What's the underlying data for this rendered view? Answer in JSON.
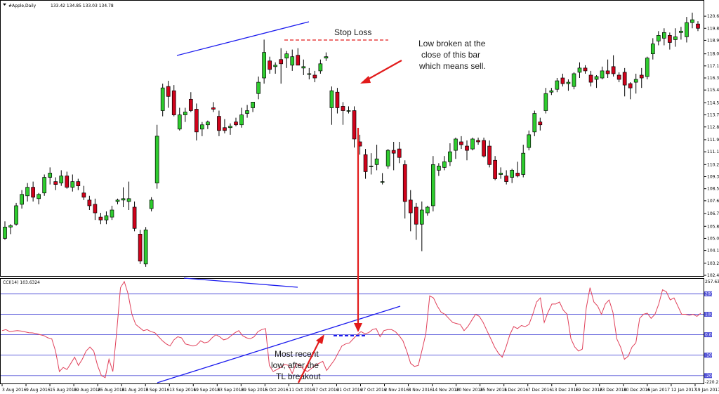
{
  "header": {
    "symbol_title": "#Apple,Daily",
    "ohlc_text": "133.42 134.85 133.03 134.78",
    "indicator_title": "CCI(14) 103.6324"
  },
  "annotations": {
    "stop_loss": "Stop Loss",
    "sell_note": [
      "Low broken at the",
      "close of this bar",
      "which means sell."
    ],
    "recent_low_note": [
      "Most recent",
      "low, after the",
      "TL breakout"
    ]
  },
  "colors": {
    "bull": "#2ecc2e",
    "bear": "#d0021b",
    "cci_line": "#e0405a",
    "trendline": "#1a1aee",
    "level_line": "#5050d8",
    "arrow": "#e21b1b",
    "stop_line": "#e21b1b"
  },
  "chart_data": [
    {
      "type": "candlestick",
      "title": "#Apple,Daily",
      "ylim": [
        102.4,
        121.0
      ],
      "y_tick_labels": [
        "120.65",
        "119.80",
        "118.95",
        "118.00",
        "117.15",
        "116.30",
        "115.45",
        "114.55",
        "113.70",
        "112.85",
        "111.95",
        "111.10",
        "110.20",
        "109.35",
        "108.50",
        "107.65",
        "106.75",
        "105.85",
        "105.00",
        "104.15",
        "103.25",
        "102.40"
      ],
      "x_tick_labels": [
        "3 Aug 2016",
        "9 Aug 2016",
        "15 Aug 2016",
        "19 Aug 2016",
        "25 Aug 2016",
        "31 Aug 2016",
        "7 Sep 2016",
        "13 Sep 2016",
        "19 Sep 2016",
        "23 Sep 2016",
        "29 Sep 2016",
        "5 Oct 2016",
        "11 Oct 2016",
        "17 Oct 2016",
        "21 Oct 2016",
        "27 Oct 2016",
        "2 Nov 2016",
        "8 Nov 2016",
        "14 Nov 2016",
        "20 Nov 2016",
        "25 Nov 2016",
        "1 Dec 2016",
        "7 Dec 2016",
        "13 Dec 2016",
        "19 Dec 2016",
        "23 Dec 2016",
        "30 Dec 2016",
        "6 Jan 2017",
        "12 Jan 2017",
        "19 Jan 2017"
      ],
      "candles": [
        {
          "o": 105.0,
          "h": 106.2,
          "l": 104.9,
          "c": 105.8
        },
        {
          "o": 105.8,
          "h": 106.0,
          "l": 105.3,
          "c": 105.9
        },
        {
          "o": 106.0,
          "h": 107.5,
          "l": 105.9,
          "c": 107.3
        },
        {
          "o": 107.4,
          "h": 108.4,
          "l": 107.1,
          "c": 108.1
        },
        {
          "o": 108.0,
          "h": 108.9,
          "l": 107.6,
          "c": 108.6
        },
        {
          "o": 108.6,
          "h": 109.0,
          "l": 107.6,
          "c": 107.9
        },
        {
          "o": 107.8,
          "h": 108.2,
          "l": 107.4,
          "c": 108.1
        },
        {
          "o": 108.2,
          "h": 109.5,
          "l": 108.0,
          "c": 109.3
        },
        {
          "o": 109.3,
          "h": 110.0,
          "l": 108.8,
          "c": 109.6
        },
        {
          "o": 109.0,
          "h": 109.3,
          "l": 108.4,
          "c": 108.8
        },
        {
          "o": 108.9,
          "h": 109.8,
          "l": 108.7,
          "c": 109.4
        },
        {
          "o": 109.4,
          "h": 109.7,
          "l": 108.5,
          "c": 108.6
        },
        {
          "o": 108.6,
          "h": 109.5,
          "l": 108.3,
          "c": 109.0
        },
        {
          "o": 109.0,
          "h": 109.2,
          "l": 108.4,
          "c": 108.7
        },
        {
          "o": 108.2,
          "h": 108.7,
          "l": 107.7,
          "c": 107.9
        },
        {
          "o": 107.7,
          "h": 108.0,
          "l": 107.0,
          "c": 107.3
        },
        {
          "o": 107.4,
          "h": 107.8,
          "l": 106.3,
          "c": 106.8
        },
        {
          "o": 106.5,
          "h": 106.8,
          "l": 106.0,
          "c": 106.3
        },
        {
          "o": 106.3,
          "h": 106.9,
          "l": 106.0,
          "c": 106.6
        },
        {
          "o": 106.5,
          "h": 107.3,
          "l": 106.3,
          "c": 107.0
        },
        {
          "o": 107.6,
          "h": 107.8,
          "l": 107.4,
          "c": 107.7
        },
        {
          "o": 107.7,
          "h": 108.6,
          "l": 107.2,
          "c": 107.8
        },
        {
          "o": 107.6,
          "h": 109.0,
          "l": 107.0,
          "c": 107.8
        },
        {
          "o": 107.2,
          "h": 107.6,
          "l": 105.5,
          "c": 105.7
        },
        {
          "o": 105.3,
          "h": 105.6,
          "l": 103.2,
          "c": 103.4
        },
        {
          "o": 103.2,
          "h": 105.8,
          "l": 103.0,
          "c": 105.6
        },
        {
          "o": 107.1,
          "h": 107.9,
          "l": 106.9,
          "c": 107.7
        },
        {
          "o": 108.9,
          "h": 113.0,
          "l": 108.5,
          "c": 112.2
        },
        {
          "o": 114.0,
          "h": 115.9,
          "l": 113.6,
          "c": 115.6
        },
        {
          "o": 115.7,
          "h": 116.1,
          "l": 114.2,
          "c": 115.0
        },
        {
          "o": 115.4,
          "h": 115.8,
          "l": 113.6,
          "c": 113.7
        },
        {
          "o": 112.7,
          "h": 114.2,
          "l": 112.6,
          "c": 113.7
        },
        {
          "o": 113.7,
          "h": 114.2,
          "l": 113.2,
          "c": 113.9
        },
        {
          "o": 114.8,
          "h": 115.3,
          "l": 113.9,
          "c": 114.0
        },
        {
          "o": 114.1,
          "h": 114.5,
          "l": 111.9,
          "c": 112.5
        },
        {
          "o": 112.7,
          "h": 113.2,
          "l": 112.2,
          "c": 113.0
        },
        {
          "o": 113.0,
          "h": 113.3,
          "l": 112.7,
          "c": 113.2
        },
        {
          "o": 114.2,
          "h": 114.6,
          "l": 113.9,
          "c": 114.1
        },
        {
          "o": 113.6,
          "h": 114.0,
          "l": 112.2,
          "c": 112.6
        },
        {
          "o": 112.8,
          "h": 113.4,
          "l": 112.4,
          "c": 112.6
        },
        {
          "o": 112.8,
          "h": 113.1,
          "l": 112.3,
          "c": 112.9
        },
        {
          "o": 113.2,
          "h": 113.5,
          "l": 112.9,
          "c": 113.0
        },
        {
          "o": 113.0,
          "h": 114.2,
          "l": 112.8,
          "c": 113.7
        },
        {
          "o": 113.8,
          "h": 114.4,
          "l": 113.5,
          "c": 114.0
        },
        {
          "o": 114.2,
          "h": 114.6,
          "l": 113.9,
          "c": 114.6
        },
        {
          "o": 115.2,
          "h": 116.4,
          "l": 114.8,
          "c": 116.0
        },
        {
          "o": 116.3,
          "h": 119.0,
          "l": 115.9,
          "c": 118.1
        },
        {
          "o": 117.5,
          "h": 117.8,
          "l": 116.6,
          "c": 116.9
        },
        {
          "o": 117.1,
          "h": 117.4,
          "l": 116.6,
          "c": 117.2
        },
        {
          "o": 117.6,
          "h": 118.4,
          "l": 115.9,
          "c": 117.3
        },
        {
          "o": 117.7,
          "h": 118.2,
          "l": 117.0,
          "c": 118.0
        },
        {
          "o": 117.2,
          "h": 118.3,
          "l": 116.8,
          "c": 117.8
        },
        {
          "o": 117.9,
          "h": 118.4,
          "l": 117.3,
          "c": 117.2
        },
        {
          "o": 117.0,
          "h": 117.6,
          "l": 116.5,
          "c": 117.1
        },
        {
          "o": 116.6,
          "h": 117.0,
          "l": 116.2,
          "c": 116.6
        },
        {
          "o": 116.5,
          "h": 116.8,
          "l": 116.0,
          "c": 116.3
        },
        {
          "o": 116.8,
          "h": 117.6,
          "l": 116.6,
          "c": 117.3
        },
        {
          "o": 117.7,
          "h": 118.1,
          "l": 117.5,
          "c": 117.8
        },
        {
          "o": 114.2,
          "h": 115.7,
          "l": 113.0,
          "c": 115.4
        },
        {
          "o": 115.3,
          "h": 115.6,
          "l": 113.8,
          "c": 114.2
        },
        {
          "o": 114.3,
          "h": 114.6,
          "l": 113.0,
          "c": 114.0
        },
        {
          "o": 114.0,
          "h": 114.3,
          "l": 113.8,
          "c": 114.0
        },
        {
          "o": 114.0,
          "h": 114.3,
          "l": 111.4,
          "c": 112.0
        },
        {
          "o": 111.8,
          "h": 112.3,
          "l": 110.9,
          "c": 111.5
        },
        {
          "o": 110.9,
          "h": 111.3,
          "l": 109.2,
          "c": 109.7
        },
        {
          "o": 110.1,
          "h": 111.0,
          "l": 109.5,
          "c": 110.1
        },
        {
          "o": 110.2,
          "h": 111.6,
          "l": 109.8,
          "c": 110.6
        },
        {
          "o": 109.0,
          "h": 109.6,
          "l": 108.8,
          "c": 109.0
        },
        {
          "o": 110.1,
          "h": 111.3,
          "l": 109.9,
          "c": 111.2
        },
        {
          "o": 111.2,
          "h": 111.8,
          "l": 109.8,
          "c": 111.0
        },
        {
          "o": 111.3,
          "h": 111.8,
          "l": 110.3,
          "c": 110.7
        },
        {
          "o": 110.2,
          "h": 110.5,
          "l": 106.4,
          "c": 107.6
        },
        {
          "o": 107.7,
          "h": 108.4,
          "l": 105.5,
          "c": 106.8
        },
        {
          "o": 107.2,
          "h": 107.5,
          "l": 104.9,
          "c": 106.0
        },
        {
          "o": 106.0,
          "h": 107.6,
          "l": 104.1,
          "c": 107.0
        },
        {
          "o": 106.8,
          "h": 107.3,
          "l": 106.6,
          "c": 107.2
        },
        {
          "o": 107.3,
          "h": 110.8,
          "l": 106.9,
          "c": 110.2
        },
        {
          "o": 109.8,
          "h": 110.3,
          "l": 109.4,
          "c": 110.1
        },
        {
          "o": 110.0,
          "h": 110.8,
          "l": 109.8,
          "c": 110.4
        },
        {
          "o": 110.4,
          "h": 111.7,
          "l": 110.1,
          "c": 111.1
        },
        {
          "o": 111.2,
          "h": 112.1,
          "l": 110.6,
          "c": 112.0
        },
        {
          "o": 111.8,
          "h": 112.2,
          "l": 111.3,
          "c": 111.6
        },
        {
          "o": 111.5,
          "h": 111.9,
          "l": 110.5,
          "c": 111.2
        },
        {
          "o": 111.3,
          "h": 112.1,
          "l": 111.2,
          "c": 112.0
        },
        {
          "o": 111.9,
          "h": 112.1,
          "l": 111.6,
          "c": 111.8
        },
        {
          "o": 111.9,
          "h": 112.1,
          "l": 110.7,
          "c": 110.8
        },
        {
          "o": 111.5,
          "h": 111.9,
          "l": 110.0,
          "c": 110.2
        },
        {
          "o": 110.5,
          "h": 110.8,
          "l": 109.1,
          "c": 109.2
        },
        {
          "o": 109.5,
          "h": 110.0,
          "l": 109.2,
          "c": 109.6
        },
        {
          "o": 109.4,
          "h": 109.8,
          "l": 108.8,
          "c": 109.0
        },
        {
          "o": 109.3,
          "h": 109.9,
          "l": 108.9,
          "c": 109.8
        },
        {
          "o": 109.6,
          "h": 110.4,
          "l": 109.3,
          "c": 109.4
        },
        {
          "o": 109.5,
          "h": 111.6,
          "l": 109.3,
          "c": 111.0
        },
        {
          "o": 111.4,
          "h": 112.6,
          "l": 111.2,
          "c": 112.3
        },
        {
          "o": 112.5,
          "h": 114.0,
          "l": 112.2,
          "c": 113.8
        },
        {
          "o": 113.2,
          "h": 113.5,
          "l": 112.6,
          "c": 113.0
        },
        {
          "o": 114.0,
          "h": 115.6,
          "l": 113.8,
          "c": 115.2
        },
        {
          "o": 115.3,
          "h": 115.6,
          "l": 115.1,
          "c": 115.4
        },
        {
          "o": 115.5,
          "h": 116.3,
          "l": 115.3,
          "c": 116.1
        },
        {
          "o": 116.3,
          "h": 116.6,
          "l": 115.7,
          "c": 115.9
        },
        {
          "o": 115.9,
          "h": 116.2,
          "l": 115.4,
          "c": 116.0
        },
        {
          "o": 115.7,
          "h": 116.7,
          "l": 115.5,
          "c": 116.6
        },
        {
          "o": 116.7,
          "h": 117.4,
          "l": 116.3,
          "c": 117.0
        },
        {
          "o": 117.0,
          "h": 117.2,
          "l": 116.6,
          "c": 116.8
        },
        {
          "o": 116.5,
          "h": 116.8,
          "l": 115.7,
          "c": 116.0
        },
        {
          "o": 116.2,
          "h": 116.5,
          "l": 115.6,
          "c": 116.4
        },
        {
          "o": 116.3,
          "h": 117.1,
          "l": 116.2,
          "c": 116.8
        },
        {
          "o": 116.8,
          "h": 117.6,
          "l": 116.3,
          "c": 116.6
        },
        {
          "o": 117.1,
          "h": 117.9,
          "l": 116.4,
          "c": 116.6
        },
        {
          "o": 116.5,
          "h": 116.7,
          "l": 116.0,
          "c": 116.2
        },
        {
          "o": 116.7,
          "h": 117.0,
          "l": 115.0,
          "c": 115.8
        },
        {
          "o": 115.9,
          "h": 116.0,
          "l": 114.8,
          "c": 115.6
        },
        {
          "o": 116.0,
          "h": 116.6,
          "l": 115.2,
          "c": 116.2
        },
        {
          "o": 116.5,
          "h": 117.0,
          "l": 115.6,
          "c": 116.3
        },
        {
          "o": 116.4,
          "h": 117.8,
          "l": 116.2,
          "c": 117.7
        },
        {
          "o": 118.0,
          "h": 119.1,
          "l": 117.6,
          "c": 118.7
        },
        {
          "o": 118.9,
          "h": 119.6,
          "l": 118.6,
          "c": 119.3
        },
        {
          "o": 119.1,
          "h": 119.8,
          "l": 118.6,
          "c": 119.5
        },
        {
          "o": 119.3,
          "h": 119.5,
          "l": 118.3,
          "c": 118.8
        },
        {
          "o": 119.0,
          "h": 119.8,
          "l": 118.5,
          "c": 119.2
        },
        {
          "o": 119.5,
          "h": 119.9,
          "l": 119.0,
          "c": 119.6
        },
        {
          "o": 119.2,
          "h": 120.6,
          "l": 118.8,
          "c": 120.2
        },
        {
          "o": 120.2,
          "h": 120.9,
          "l": 119.8,
          "c": 120.4
        },
        {
          "o": 120.1,
          "h": 120.3,
          "l": 119.6,
          "c": 119.8
        }
      ]
    },
    {
      "type": "line",
      "title": "CCI(14) 103.6324",
      "y_tick_labels": [
        "257.6306",
        "200",
        "100",
        "0.00",
        "-100",
        "-200",
        "-220.251"
      ],
      "levels": [
        200,
        100,
        0,
        -100,
        -200
      ],
      "series": [
        {
          "values": [
            20,
            25,
            15,
            18,
            20,
            18,
            14,
            10,
            9,
            5,
            0,
            -5,
            -15,
            -20,
            -80,
            -180,
            -160,
            -170,
            -140,
            -110,
            -150,
            -120,
            -80,
            -60,
            -80,
            -150,
            -200,
            -210,
            -120,
            -180,
            10,
            230,
            260,
            200,
            100,
            50,
            35,
            20,
            25,
            15,
            10,
            -10,
            -30,
            -45,
            -55,
            -25,
            -10,
            -15,
            -45,
            -50,
            -55,
            -50,
            -30,
            -40,
            -35,
            -15,
            0,
            -10,
            -25,
            -20,
            -5,
            10,
            20,
            -5,
            -15,
            -20,
            -10,
            15,
            25,
            30,
            -150,
            -180,
            -170,
            -160,
            -145,
            -150,
            -190,
            -140,
            -150,
            -170,
            -180,
            -165,
            -150,
            -140,
            -130,
            -175,
            -150,
            -125,
            -90,
            -55,
            -45,
            -40,
            -20,
            0,
            15,
            5,
            10,
            25,
            30,
            -10,
            20,
            25,
            25,
            15,
            -5,
            -30,
            -80,
            -140,
            -155,
            -150,
            -75,
            5,
            190,
            180,
            140,
            110,
            100,
            80,
            60,
            55,
            50,
            20,
            40,
            70,
            100,
            90,
            60,
            20,
            -20,
            -60,
            -90,
            -110,
            -60,
            0,
            40,
            30,
            45,
            40,
            50,
            100,
            160,
            180,
            60,
            110,
            150,
            150,
            160,
            120,
            100,
            -20,
            -60,
            -80,
            -70,
            130,
            230,
            160,
            140,
            100,
            150,
            170,
            110,
            -20,
            -60,
            -120,
            -105,
            -60,
            -40,
            80,
            100,
            105,
            80,
            100,
            150,
            220,
            210,
            170,
            180,
            140,
            100,
            100,
            95,
            100,
            90,
            105
          ]
        }
      ]
    }
  ]
}
